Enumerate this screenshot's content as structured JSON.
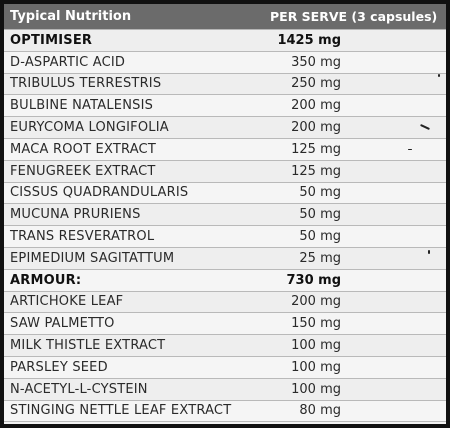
{
  "header": {
    "name": "Typical Nutrition",
    "amount": "PER SERVE (3 capsules)"
  },
  "rows": [
    {
      "name": "OPTIMISER",
      "amount": "1425 mg",
      "section": true
    },
    {
      "name": "D-ASPARTIC ACID",
      "amount": "350 mg"
    },
    {
      "name": "TRIBULUS TERRESTRIS",
      "amount": "250 mg"
    },
    {
      "name": "BULBINE NATALENSIS",
      "amount": "200 mg"
    },
    {
      "name": "EURYCOMA LONGIFOLIA",
      "amount": "200 mg"
    },
    {
      "name": "MACA ROOT EXTRACT",
      "amount": "125 mg"
    },
    {
      "name": "FENUGREEK EXTRACT",
      "amount": "125 mg"
    },
    {
      "name": "CISSUS QUADRANDULARIS",
      "amount": "50 mg"
    },
    {
      "name": "MUCUNA PRURIENS",
      "amount": "50 mg"
    },
    {
      "name": "TRANS RESVERATROL",
      "amount": "50 mg"
    },
    {
      "name": "EPIMEDIUM SAGITATTUM",
      "amount": "25 mg"
    },
    {
      "name": "ARMOUR:",
      "amount": "730 mg",
      "section": true
    },
    {
      "name": "ARTICHOKE LEAF",
      "amount": "200 mg"
    },
    {
      "name": "SAW PALMETTO",
      "amount": "150 mg"
    },
    {
      "name": "MILK THISTLE EXTRACT",
      "amount": "100 mg"
    },
    {
      "name": "PARSLEY SEED",
      "amount": "100 mg"
    },
    {
      "name": "N-ACETYL-L-CYSTEIN",
      "amount": "100 mg"
    },
    {
      "name": "STINGING NETTLE LEAF EXTRACT",
      "amount": "80 mg"
    }
  ],
  "colors": {
    "header_bg": "#6b6b6b",
    "frame": "#111111",
    "row_bg": "#f2f2f2"
  }
}
